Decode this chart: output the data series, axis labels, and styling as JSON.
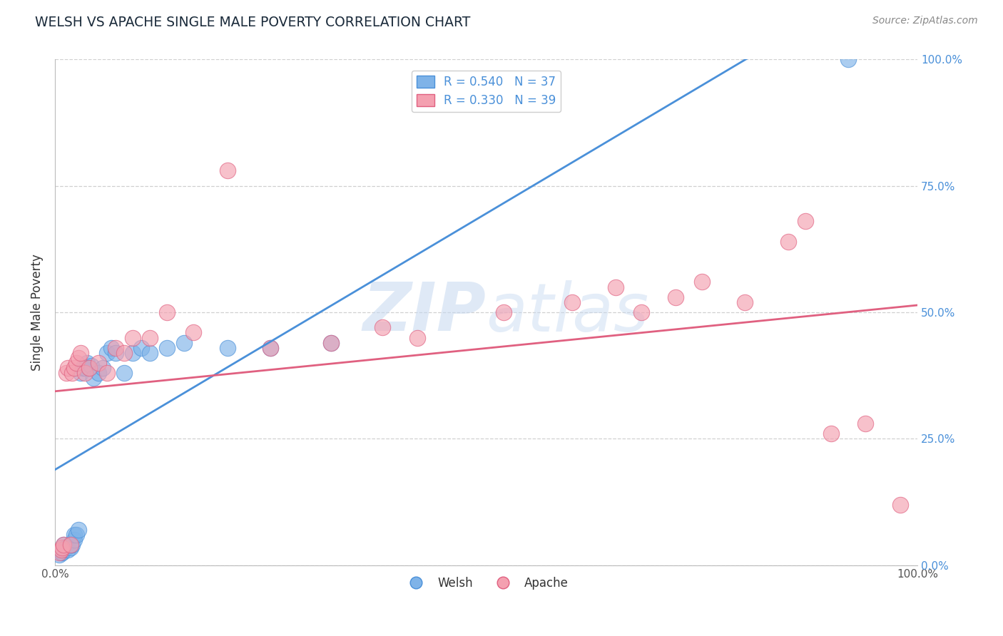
{
  "title": "WELSH VS APACHE SINGLE MALE POVERTY CORRELATION CHART",
  "source": "Source: ZipAtlas.com",
  "ylabel": "Single Male Poverty",
  "xlim": [
    0,
    1
  ],
  "ylim": [
    0,
    1
  ],
  "welsh_color": "#7fb3e8",
  "apache_color": "#f4a0b0",
  "welsh_line_color": "#4a90d9",
  "apache_line_color": "#e06080",
  "welsh_R": 0.54,
  "welsh_N": 37,
  "apache_R": 0.33,
  "apache_N": 39,
  "welsh_x": [
    0.005,
    0.007,
    0.008,
    0.01,
    0.01,
    0.012,
    0.013,
    0.015,
    0.017,
    0.018,
    0.02,
    0.022,
    0.022,
    0.025,
    0.027,
    0.03,
    0.032,
    0.035,
    0.037,
    0.04,
    0.042,
    0.045,
    0.05,
    0.055,
    0.06,
    0.065,
    0.07,
    0.08,
    0.09,
    0.1,
    0.11,
    0.13,
    0.15,
    0.2,
    0.25,
    0.32,
    0.92
  ],
  "welsh_y": [
    0.02,
    0.025,
    0.025,
    0.03,
    0.04,
    0.035,
    0.035,
    0.03,
    0.04,
    0.035,
    0.04,
    0.05,
    0.06,
    0.06,
    0.07,
    0.38,
    0.39,
    0.39,
    0.4,
    0.39,
    0.395,
    0.37,
    0.38,
    0.39,
    0.42,
    0.43,
    0.42,
    0.38,
    0.42,
    0.43,
    0.42,
    0.43,
    0.44,
    0.43,
    0.43,
    0.44,
    1.0
  ],
  "apache_x": [
    0.005,
    0.007,
    0.008,
    0.01,
    0.013,
    0.015,
    0.018,
    0.02,
    0.022,
    0.025,
    0.027,
    0.03,
    0.035,
    0.04,
    0.05,
    0.06,
    0.07,
    0.08,
    0.09,
    0.11,
    0.13,
    0.16,
    0.2,
    0.25,
    0.32,
    0.38,
    0.42,
    0.52,
    0.6,
    0.65,
    0.68,
    0.72,
    0.75,
    0.8,
    0.85,
    0.87,
    0.9,
    0.94,
    0.98
  ],
  "apache_y": [
    0.025,
    0.03,
    0.035,
    0.04,
    0.38,
    0.39,
    0.04,
    0.38,
    0.39,
    0.4,
    0.41,
    0.42,
    0.38,
    0.39,
    0.4,
    0.38,
    0.43,
    0.42,
    0.45,
    0.45,
    0.5,
    0.46,
    0.78,
    0.43,
    0.44,
    0.47,
    0.45,
    0.5,
    0.52,
    0.55,
    0.5,
    0.53,
    0.56,
    0.52,
    0.64,
    0.68,
    0.26,
    0.28,
    0.12
  ],
  "watermark_zip": "ZIP",
  "watermark_atlas": "atlas",
  "background_color": "#ffffff",
  "grid_color": "#d0d0d0",
  "title_color": "#1a2a3a",
  "source_color": "#888888",
  "title_fontsize": 13.5,
  "source_fontsize": 10,
  "legend_fontsize": 12,
  "axis_label_fontsize": 11,
  "ytick_label_color": "#4a90d9"
}
